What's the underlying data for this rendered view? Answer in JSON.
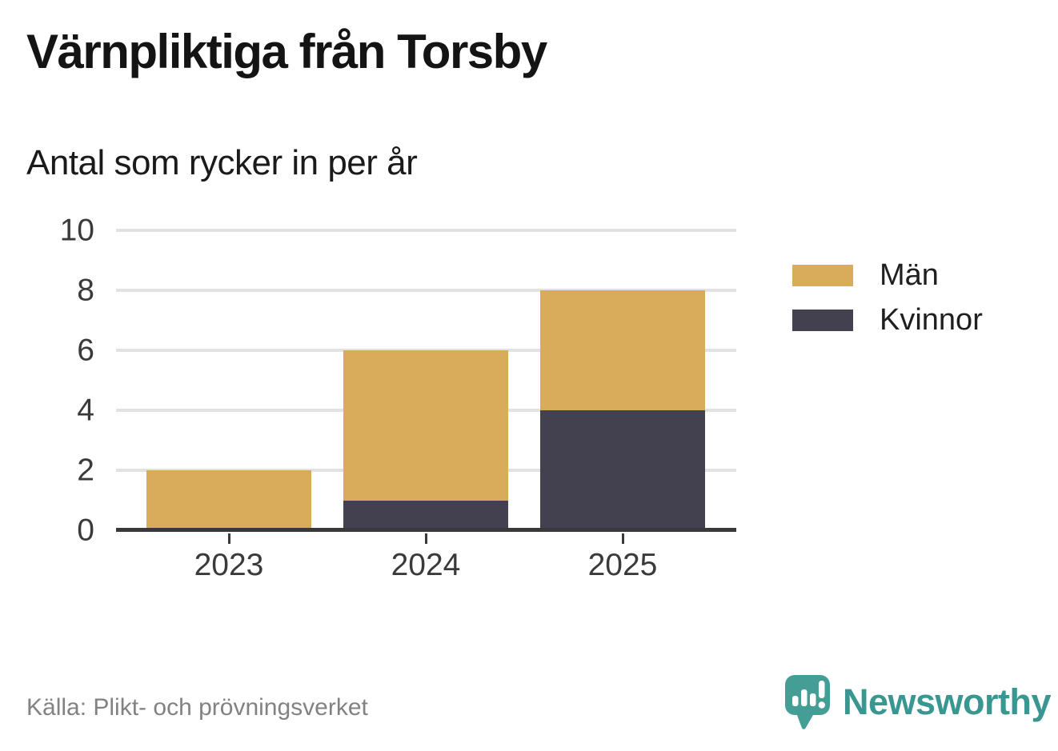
{
  "title": "Värnpliktiga från Torsby",
  "subtitle": "Antal som rycker in per år",
  "source": "Källa: Plikt- och prövningsverket",
  "brand": {
    "name": "Newsworthy",
    "logo_icon": "speech-bubble-bar-chart-exclamation-icon",
    "text_color": "#3a9690",
    "icon_color": "#459e96"
  },
  "colors": {
    "men": "#d9ac5b",
    "women": "#43404f",
    "gridline": "#e2e2e2",
    "axis": "#39393b",
    "tick_label": "#3a3a3a",
    "source_text": "#828282"
  },
  "chart_data": {
    "type": "bar",
    "stacked": true,
    "title": "Värnpliktiga från Torsby",
    "subtitle": "Antal som rycker in per år",
    "categories": [
      "2023",
      "2024",
      "2025"
    ],
    "series": [
      {
        "name": "Män",
        "color": "#d9ac5b",
        "values": [
          2,
          5,
          4
        ]
      },
      {
        "name": "Kvinnor",
        "color": "#43404f",
        "values": [
          0,
          1,
          4
        ]
      }
    ],
    "stack_bottom_to_top": [
      "Kvinnor",
      "Män"
    ],
    "totals": [
      2,
      6,
      8
    ],
    "xlabel": "",
    "ylabel": "",
    "ylim": [
      0,
      10
    ],
    "yticks": [
      0,
      2,
      4,
      6,
      8,
      10
    ],
    "grid": "horizontal",
    "legend_position": "right"
  }
}
